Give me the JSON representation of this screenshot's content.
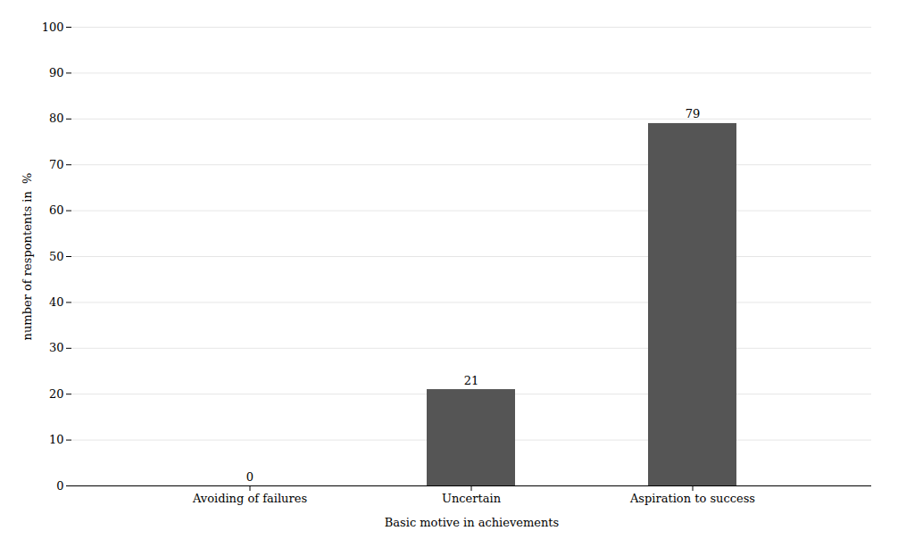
{
  "chart_data": {
    "type": "bar",
    "categories": [
      "Avoiding of failures",
      "Uncertain",
      "Aspiration to success"
    ],
    "values": [
      0,
      21,
      79
    ],
    "color": "#555555",
    "xlabel": "Basic motive in achievements",
    "ylabel": "number of respontents in  %",
    "ylim": [
      0,
      100
    ],
    "yticks": [
      0,
      10,
      20,
      30,
      40,
      50,
      60,
      70,
      80,
      90,
      100
    ],
    "grid": true,
    "data_labels": true
  }
}
